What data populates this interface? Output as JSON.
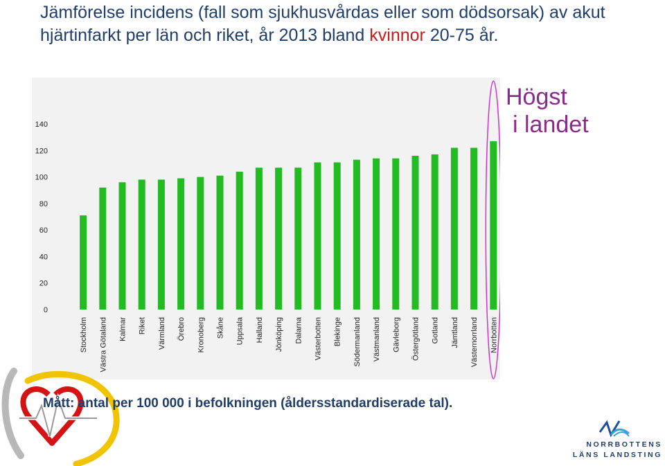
{
  "title": {
    "part1": "Jämförelse incidens (fall som sjukhusvårdas eller som dödsorsak) av akut hjärtinfarkt per län och riket, år 2013 bland ",
    "highlight": "kvinnor",
    "part2": " 20-75 år."
  },
  "callout": {
    "line1": "Högst",
    "line2": "i landet"
  },
  "measure_note": "Mått: antal per 100 000 i befolkningen (åldersstandardiserade tal).",
  "logo": {
    "line1": "NORRBOTTENS",
    "line2": "LÄNS LANDSTING"
  },
  "colors": {
    "bar": "#22bb22",
    "highlight_ring": "#cc33cc",
    "title_highlight": "#cc1a1a",
    "text": "#1f3d6b"
  },
  "chart_data": {
    "type": "bar",
    "categories": [
      "Stockholm",
      "Västra Götaland",
      "Kalmar",
      "Riket",
      "Värmland",
      "Örebro",
      "Kronoberg",
      "Skåne",
      "Uppsala",
      "Halland",
      "Jönköping",
      "Dalarna",
      "Västerbotten",
      "Blekinge",
      "Södermanland",
      "Västmanland",
      "Gävleborg",
      "Östergötland",
      "Gotland",
      "Jämtland",
      "Västernorrland",
      "Norrbotten"
    ],
    "values": [
      71,
      92,
      96,
      98,
      98,
      99,
      100,
      101,
      104,
      107,
      107,
      107,
      111,
      111,
      113,
      114,
      114,
      116,
      117,
      122,
      122,
      127
    ],
    "ylim": [
      0,
      140
    ],
    "yticks": [
      "0",
      "20",
      "40",
      "60",
      "80",
      "100",
      "120",
      "140"
    ],
    "highlighted_category": "Norrbotten",
    "grid": false
  }
}
